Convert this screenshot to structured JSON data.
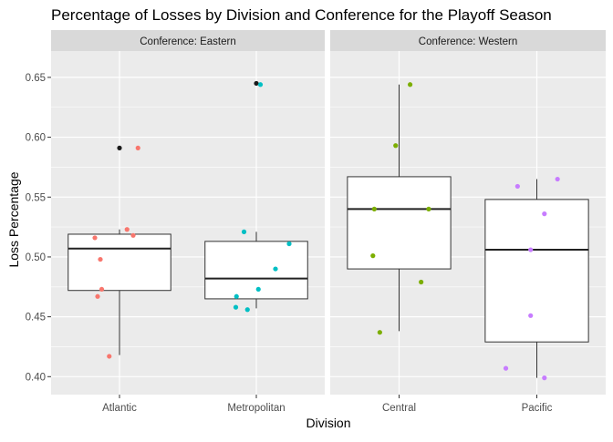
{
  "chart_data": {
    "type": "boxplot",
    "title": "Percentage of Losses by Division and Conference for the Playoff Season",
    "xlabel": "Division",
    "ylabel": "Loss Percentage",
    "ylim": [
      0.385,
      0.672
    ],
    "yticks": [
      0.4,
      0.45,
      0.5,
      0.55,
      0.6,
      0.65
    ],
    "ytick_labels": [
      "0.40",
      "0.45",
      "0.50",
      "0.55",
      "0.60",
      "0.65"
    ],
    "grid": true,
    "legend": "none",
    "facets": [
      {
        "strip": "Conference: Eastern",
        "categories": [
          "Atlantic",
          "Metropolitan"
        ]
      },
      {
        "strip": "Conference: Western",
        "categories": [
          "Central",
          "Pacific"
        ]
      }
    ],
    "boxes": [
      {
        "division": "Atlantic",
        "color": "#F8766D",
        "min": 0.418,
        "q1": 0.472,
        "median": 0.507,
        "q3": 0.519,
        "max": 0.523,
        "outliers": [
          0.591
        ],
        "points": [
          [
            -0.36,
            0.516
          ],
          [
            -0.32,
            0.467
          ],
          [
            -0.26,
            0.473
          ],
          [
            -0.28,
            0.498
          ],
          [
            -0.15,
            0.417
          ],
          [
            0.11,
            0.523
          ],
          [
            0.2,
            0.518
          ],
          [
            0.27,
            0.591
          ]
        ]
      },
      {
        "division": "Metropolitan",
        "color": "#00BFC4",
        "min": 0.457,
        "q1": 0.465,
        "median": 0.482,
        "q3": 0.513,
        "max": 0.521,
        "outliers": [
          0.645
        ],
        "points": [
          [
            -0.29,
            0.467
          ],
          [
            -0.3,
            0.458
          ],
          [
            -0.18,
            0.521
          ],
          [
            -0.13,
            0.456
          ],
          [
            0.03,
            0.473
          ],
          [
            0.06,
            0.644
          ],
          [
            0.28,
            0.49
          ],
          [
            0.48,
            0.511
          ]
        ]
      },
      {
        "division": "Central",
        "color": "#7CAE00",
        "min": 0.438,
        "q1": 0.49,
        "median": 0.54,
        "q3": 0.567,
        "max": 0.644,
        "outliers": [],
        "points": [
          [
            -0.36,
            0.54
          ],
          [
            -0.38,
            0.501
          ],
          [
            -0.28,
            0.437
          ],
          [
            -0.05,
            0.593
          ],
          [
            0.16,
            0.644
          ],
          [
            0.43,
            0.54
          ],
          [
            0.32,
            0.479
          ]
        ]
      },
      {
        "division": "Pacific",
        "color": "#C77CFF",
        "min": 0.399,
        "q1": 0.429,
        "median": 0.506,
        "q3": 0.548,
        "max": 0.565,
        "outliers": [],
        "points": [
          [
            -0.45,
            0.407
          ],
          [
            -0.28,
            0.559
          ],
          [
            -0.09,
            0.506
          ],
          [
            -0.09,
            0.451
          ],
          [
            0.11,
            0.536
          ],
          [
            0.3,
            0.565
          ],
          [
            0.11,
            0.399
          ]
        ]
      }
    ]
  }
}
